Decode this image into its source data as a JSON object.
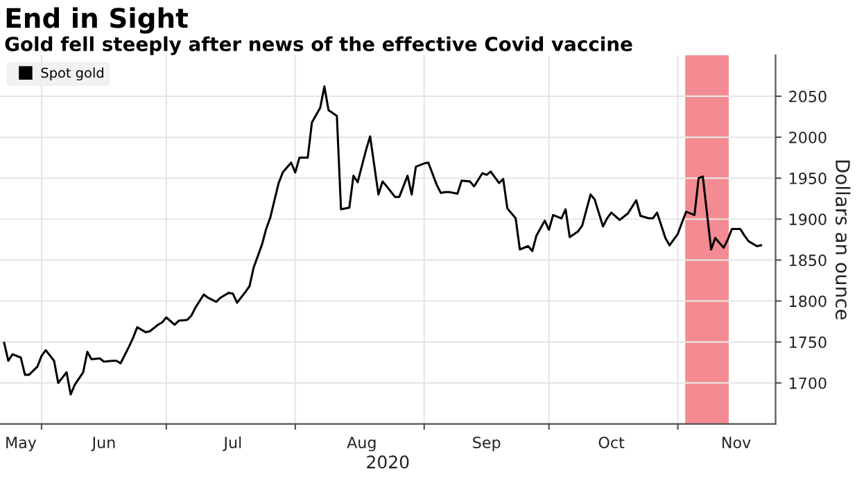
{
  "chart_data": {
    "type": "line",
    "title": "End in Sight",
    "subtitle": "Gold fell steeply after news of the effective Covid vaccine",
    "xlabel": "2020",
    "ylabel": "Dollars an ounce",
    "x": [
      "2020-05-23",
      "2020-05-24",
      "2020-05-25",
      "2020-05-27",
      "2020-05-28",
      "2020-05-29",
      "2020-05-31",
      "2020-06-01",
      "2020-06-02",
      "2020-06-04",
      "2020-06-05",
      "2020-06-07",
      "2020-06-08",
      "2020-06-09",
      "2020-06-11",
      "2020-06-12",
      "2020-06-13",
      "2020-06-15",
      "2020-06-16",
      "2020-06-18",
      "2020-06-19",
      "2020-06-20",
      "2020-06-22",
      "2020-06-23",
      "2020-06-24",
      "2020-06-26",
      "2020-06-27",
      "2020-06-29",
      "2020-06-30",
      "2020-07-01",
      "2020-07-03",
      "2020-07-04",
      "2020-07-06",
      "2020-07-07",
      "2020-07-08",
      "2020-07-10",
      "2020-07-11",
      "2020-07-13",
      "2020-07-14",
      "2020-07-16",
      "2020-07-17",
      "2020-07-18",
      "2020-07-20",
      "2020-07-21",
      "2020-07-22",
      "2020-07-24",
      "2020-07-25",
      "2020-07-26",
      "2020-07-28",
      "2020-07-29",
      "2020-07-31",
      "2020-08-01",
      "2020-08-02",
      "2020-08-04",
      "2020-08-05",
      "2020-08-07",
      "2020-08-08",
      "2020-08-09",
      "2020-08-11",
      "2020-08-12",
      "2020-08-14",
      "2020-08-15",
      "2020-08-16",
      "2020-08-18",
      "2020-08-19",
      "2020-08-21",
      "2020-08-22",
      "2020-08-23",
      "2020-08-25",
      "2020-08-26",
      "2020-08-28",
      "2020-08-29",
      "2020-08-30",
      "2020-09-01",
      "2020-09-02",
      "2020-09-04",
      "2020-09-05",
      "2020-09-06",
      "2020-09-07",
      "2020-09-09",
      "2020-09-10",
      "2020-09-12",
      "2020-09-13",
      "2020-09-15",
      "2020-09-16",
      "2020-09-17",
      "2020-09-19",
      "2020-09-20",
      "2020-09-21",
      "2020-09-23",
      "2020-09-24",
      "2020-09-26",
      "2020-09-27",
      "2020-09-28",
      "2020-09-30",
      "2020-10-01",
      "2020-10-02",
      "2020-10-04",
      "2020-10-05",
      "2020-10-06",
      "2020-10-08",
      "2020-10-09",
      "2020-10-11",
      "2020-10-12",
      "2020-10-14",
      "2020-10-15",
      "2020-10-16",
      "2020-10-18",
      "2020-10-19",
      "2020-10-20",
      "2020-10-22",
      "2020-10-23",
      "2020-10-25",
      "2020-10-26",
      "2020-10-27",
      "2020-10-29",
      "2020-10-30",
      "2020-11-01",
      "2020-11-02",
      "2020-11-03",
      "2020-11-05",
      "2020-11-06",
      "2020-11-07",
      "2020-11-09",
      "2020-11-10",
      "2020-11-12",
      "2020-11-13",
      "2020-11-14",
      "2020-11-16",
      "2020-11-17",
      "2020-11-18",
      "2020-11-20",
      "2020-11-21"
    ],
    "series": [
      {
        "name": "Spot gold",
        "color": "#000000",
        "values": [
          1749,
          1727,
          1735,
          1731,
          1710,
          1710,
          1720,
          1733,
          1740,
          1727,
          1700,
          1713,
          1686,
          1698,
          1713,
          1738,
          1729,
          1730,
          1726,
          1727,
          1727,
          1724,
          1744,
          1755,
          1768,
          1762,
          1763,
          1771,
          1774,
          1780,
          1771,
          1776,
          1777,
          1782,
          1792,
          1808,
          1804,
          1799,
          1804,
          1810,
          1809,
          1798,
          1811,
          1818,
          1841,
          1869,
          1888,
          1902,
          1944,
          1957,
          1969,
          1957,
          1975,
          1975,
          2018,
          2036,
          2062,
          2033,
          2026,
          1912,
          1914,
          1953,
          1945,
          1984,
          2001,
          1930,
          1946,
          1940,
          1927,
          1927,
          1953,
          1930,
          1964,
          1968,
          1969,
          1942,
          1932,
          1933,
          1933,
          1931,
          1947,
          1946,
          1940,
          1956,
          1954,
          1958,
          1944,
          1949,
          1913,
          1901,
          1863,
          1867,
          1861,
          1880,
          1898,
          1887,
          1905,
          1901,
          1912,
          1878,
          1885,
          1892,
          1930,
          1924,
          1891,
          1901,
          1908,
          1899,
          1903,
          1907,
          1923,
          1904,
          1901,
          1901,
          1908,
          1877,
          1868,
          1882,
          1896,
          1909,
          1905,
          1950,
          1952,
          1863,
          1877,
          1865,
          1875,
          1888,
          1888,
          1880,
          1873,
          1867,
          1868
        ]
      }
    ],
    "xlim": [
      "2020-05-22",
      "2020-11-24T12:00"
    ],
    "xticks": [
      {
        "value": "2020-06-01",
        "label": null
      },
      {
        "value": "2020-07-01",
        "label": null
      },
      {
        "value": "2020-08-01",
        "label": null
      },
      {
        "value": "2020-09-01",
        "label": null
      },
      {
        "value": "2020-10-01",
        "label": null
      },
      {
        "value": "2020-11-01",
        "label": null
      },
      {
        "value": "2020-05-27",
        "label": "May"
      },
      {
        "value": "2020-06-16",
        "label": "Jun"
      },
      {
        "value": "2020-07-17",
        "label": "Jul"
      },
      {
        "value": "2020-08-17",
        "label": "Aug"
      },
      {
        "value": "2020-09-16",
        "label": "Sep"
      },
      {
        "value": "2020-10-16",
        "label": "Oct"
      },
      {
        "value": "2020-11-15",
        "label": "Nov"
      }
    ],
    "ylim": [
      1650,
      2100
    ],
    "yticks": [
      1700,
      1750,
      1800,
      1850,
      1900,
      1950,
      2000,
      2050
    ],
    "bands": [
      {
        "axis": "x",
        "from": "2020-11-03",
        "to": "2020-11-13",
        "color": "#f4777f"
      }
    ],
    "grid": true,
    "legend": "top left",
    "marker": "none",
    "line_style": "solid"
  }
}
